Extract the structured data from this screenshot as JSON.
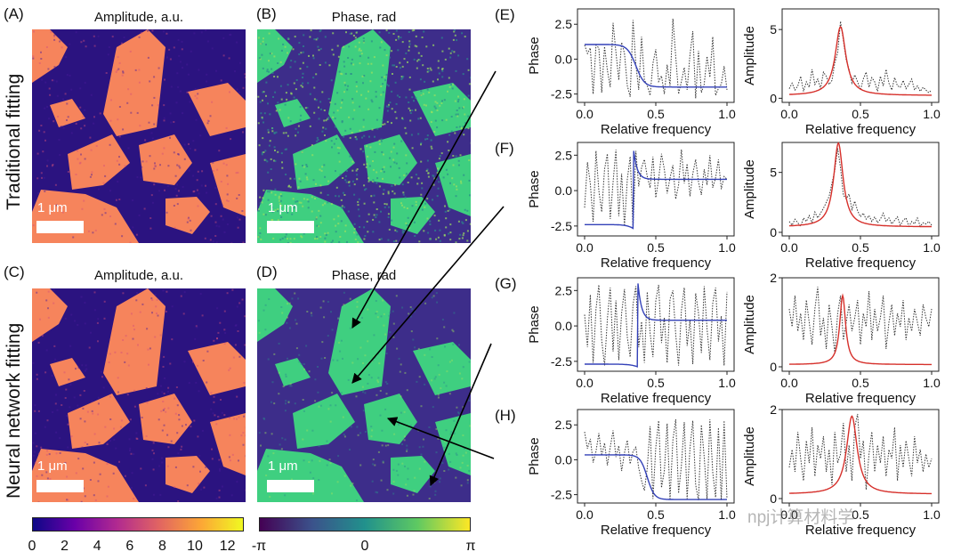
{
  "panels": {
    "A": {
      "letter": "(A)",
      "title": "Amplitude, a.u.",
      "scalebar": "1 μm"
    },
    "B": {
      "letter": "(B)",
      "title": "Phase, rad",
      "scalebar": "1 μm"
    },
    "C": {
      "letter": "(C)",
      "title": "Amplitude, a.u.",
      "scalebar": "1 μm"
    },
    "D": {
      "letter": "(D)",
      "title": "Phase, rad",
      "scalebar": "1 μm"
    }
  },
  "row_labels": {
    "top": "Traditional fitting",
    "bottom": "Neural network fitting"
  },
  "colorbars": {
    "amplitude": {
      "ticks": [
        "0",
        "2",
        "4",
        "6",
        "8",
        "10",
        "12"
      ],
      "colors": [
        "#0d0887",
        "#6a00a8",
        "#b12a90",
        "#e16462",
        "#fca636",
        "#f0f921"
      ]
    },
    "phase": {
      "ticks": [
        "-π",
        "0",
        "π"
      ],
      "colors": [
        "#440154",
        "#3b528b",
        "#21918c",
        "#5ec962",
        "#fde725"
      ]
    }
  },
  "colors": {
    "fit_phase": "#3341b8",
    "fit_amplitude": "#d6302b",
    "data": "#333333",
    "amp_map_low": "#2b1380",
    "amp_map_high": "#f6845c",
    "phase_map_low": "#3d2d8a",
    "phase_map_high": "#3fcf80"
  },
  "watermark": "npj计算材料学",
  "chart_data": [
    {
      "panel": "(E)",
      "type": "line",
      "xlabel": "Relative frequency",
      "ylabel": "Phase",
      "xticks": [
        "0.0",
        "0.5",
        "1.0"
      ],
      "yticks": [
        "-2.5",
        "0.0",
        "2.5"
      ],
      "xlim": [
        -0.05,
        1.05
      ],
      "ylim": [
        -3.1,
        3.6
      ],
      "fit": {
        "kind": "phase",
        "hi": 1.05,
        "lo": -2.0,
        "x0": 0.36,
        "w": 0.03
      },
      "data": [
        1.0,
        0.4,
        0.8,
        -2.5,
        1.0,
        0.8,
        -2.4,
        0.9,
        -0.8,
        -2.0,
        2.6,
        0.5,
        -1.5,
        1.2,
        0.4,
        -1.9,
        -2.7,
        2.8,
        -0.4,
        -2.2,
        1.6,
        -1.5,
        -1.9,
        -2.6,
        -0.3,
        0.7,
        -1.6,
        -1.2,
        -2.5,
        -0.4,
        -1.9,
        2.9,
        0.2,
        -2.5,
        -1.6,
        -0.6,
        -2.2,
        0.3,
        2.0,
        -2.8,
        0.6,
        -2.4,
        -1.8,
        0.2,
        -1.3,
        1.6,
        -2.6,
        -2.1,
        -1.8,
        -0.5,
        -2.2
      ]
    },
    {
      "panel": "(E)",
      "type": "line",
      "xlabel": "Relative frequency",
      "ylabel": "Amplitude",
      "xticks": [
        "0.0",
        "0.5",
        "1.0"
      ],
      "yticks": [
        "0",
        "5"
      ],
      "xlim": [
        -0.05,
        1.05
      ],
      "ylim": [
        -0.3,
        6.5
      ],
      "fit": {
        "kind": "amp",
        "A": 5.0,
        "x0": 0.36,
        "g": 0.045,
        "base": 0.2
      },
      "data": [
        0.7,
        1.1,
        0.6,
        0.9,
        1.6,
        0.5,
        1.2,
        0.8,
        2.1,
        1.0,
        1.4,
        0.7,
        1.9,
        1.6,
        1.0,
        1.3,
        2.6,
        3.3,
        5.6,
        4.2,
        2.8,
        2.1,
        1.1,
        1.7,
        1.2,
        0.6,
        1.4,
        1.9,
        0.8,
        1.5,
        1.2,
        0.5,
        1.6,
        0.9,
        2.1,
        1.1,
        0.6,
        1.5,
        0.9,
        0.8,
        1.3,
        0.7,
        1.0,
        1.4,
        0.6,
        0.9,
        0.5,
        0.8,
        0.6,
        0.4,
        0.6
      ]
    },
    {
      "panel": "(F)",
      "type": "line",
      "xlabel": "Relative frequency",
      "ylabel": "Phase",
      "xticks": [
        "0.0",
        "0.5",
        "1.0"
      ],
      "yticks": [
        "-2.5",
        "0.0",
        "2.5"
      ],
      "xlim": [
        -0.05,
        1.05
      ],
      "ylim": [
        -3.2,
        3.4
      ],
      "fit": {
        "kind": "phase_jump",
        "lo1": -2.4,
        "hi1": -2.7,
        "hi2": 2.8,
        "lo2": 0.8,
        "x0": 0.345
      },
      "data": [
        -1.2,
        2.0,
        0.5,
        -2.2,
        2.8,
        0.0,
        -1.5,
        1.5,
        2.6,
        -2.0,
        0.6,
        2.9,
        -1.8,
        1.2,
        -2.5,
        0.8,
        2.4,
        -2.7,
        2.8,
        0.3,
        1.6,
        2.2,
        1.0,
        0.2,
        2.4,
        -0.5,
        0.8,
        2.6,
        1.5,
        -0.2,
        0.9,
        1.8,
        -0.6,
        0.4,
        2.9,
        0.5,
        1.9,
        -0.4,
        1.2,
        2.2,
        0.6,
        -0.3,
        1.5,
        0.4,
        2.5,
        0.2,
        0.9,
        2.2,
        0.1,
        1.0,
        0.8
      ]
    },
    {
      "panel": "(F)",
      "type": "line",
      "xlabel": "Relative frequency",
      "ylabel": "Amplitude",
      "xticks": [
        "0.0",
        "0.5",
        "1.0"
      ],
      "yticks": [
        "0",
        "5"
      ],
      "xlim": [
        -0.05,
        1.05
      ],
      "ylim": [
        -0.3,
        7.5
      ],
      "fit": {
        "kind": "amp",
        "A": 7.0,
        "x0": 0.345,
        "g": 0.04,
        "base": 0.45
      },
      "data": [
        0.9,
        0.6,
        1.1,
        0.8,
        0.5,
        1.2,
        0.9,
        1.4,
        0.8,
        1.7,
        1.2,
        1.6,
        2.0,
        2.5,
        3.0,
        4.1,
        5.2,
        7.0,
        5.4,
        3.1,
        2.8,
        3.2,
        1.9,
        2.6,
        1.8,
        1.3,
        1.6,
        1.1,
        1.4,
        0.9,
        1.3,
        0.8,
        1.1,
        1.6,
        0.9,
        1.2,
        0.7,
        1.0,
        1.3,
        0.6,
        1.0,
        1.2,
        0.5,
        0.9,
        0.7,
        1.2,
        0.5,
        0.8,
        0.7,
        0.9,
        0.6
      ]
    },
    {
      "panel": "(G)",
      "type": "line",
      "xlabel": "Relative frequency",
      "ylabel": "Phase",
      "xticks": [
        "0.0",
        "0.5",
        "1.0"
      ],
      "yticks": [
        "-2.5",
        "0.0",
        "2.5"
      ],
      "xlim": [
        -0.05,
        1.05
      ],
      "ylim": [
        -3.2,
        3.4
      ],
      "fit": {
        "kind": "phase_jump",
        "lo1": -2.7,
        "hi1": -2.9,
        "hi2": 3.0,
        "lo2": 0.4,
        "x0": 0.375
      },
      "data": [
        0.8,
        -1.5,
        2.2,
        -2.6,
        1.2,
        2.9,
        -1.0,
        -2.8,
        0.5,
        2.7,
        -1.8,
        1.8,
        -2.4,
        0.9,
        2.6,
        -0.8,
        -2.2,
        1.5,
        2.8,
        -1.5,
        0.3,
        -2.6,
        2.4,
        -0.5,
        -2.2,
        1.8,
        2.9,
        -1.2,
        0.6,
        -2.6,
        1.9,
        2.5,
        -0.6,
        -2.8,
        1.1,
        2.7,
        -1.4,
        0.4,
        -2.7,
        2.3,
        0.9,
        -1.9,
        2.8,
        -0.2,
        -2.4,
        1.6,
        2.7,
        -1.1,
        0.7,
        -2.8,
        2.4
      ]
    },
    {
      "panel": "(G)",
      "type": "line",
      "xlabel": "Relative frequency",
      "ylabel": "Amplitude",
      "xticks": [
        "0.0",
        "0.5",
        "1.0"
      ],
      "yticks": [
        "0",
        "2"
      ],
      "xlim": [
        -0.05,
        1.05
      ],
      "ylim": [
        -0.1,
        2.0
      ],
      "fit": {
        "kind": "amp",
        "A": 1.55,
        "x0": 0.375,
        "g": 0.025,
        "base": 0.05
      },
      "data": [
        1.3,
        0.9,
        1.6,
        0.8,
        1.2,
        0.6,
        1.5,
        1.0,
        0.5,
        1.3,
        1.8,
        0.7,
        1.1,
        0.4,
        1.4,
        0.9,
        0.3,
        1.2,
        1.6,
        0.6,
        1.0,
        1.4,
        0.8,
        1.1,
        1.5,
        0.5,
        1.2,
        0.9,
        1.7,
        0.6,
        1.3,
        0.8,
        1.1,
        1.6,
        0.4,
        1.0,
        1.4,
        0.7,
        1.2,
        0.9,
        1.5,
        0.6,
        1.1,
        0.8,
        1.3,
        1.0,
        0.7,
        1.4,
        1.1,
        0.9,
        1.3
      ]
    },
    {
      "panel": "(H)",
      "type": "line",
      "xlabel": "Relative frequency",
      "ylabel": "Phase",
      "xticks": [
        "0.0",
        "0.5",
        "1.0"
      ],
      "yticks": [
        "-2.5",
        "0.0",
        "2.5"
      ],
      "xlim": [
        -0.05,
        1.05
      ],
      "ylim": [
        -3.1,
        3.6
      ],
      "fit": {
        "kind": "phase",
        "hi": 0.35,
        "lo": -2.85,
        "x0": 0.44,
        "w": 0.025
      },
      "data": [
        2.0,
        0.8,
        1.5,
        -0.2,
        0.6,
        1.9,
        0.3,
        1.2,
        -0.4,
        0.9,
        2.1,
        0.2,
        1.0,
        -0.8,
        0.5,
        1.4,
        -0.3,
        0.6,
        0.9,
        -0.6,
        -1.5,
        -2.2,
        -0.6,
        2.4,
        -2.8,
        0.9,
        2.8,
        -2.0,
        -0.8,
        2.6,
        -2.8,
        1.4,
        2.9,
        -2.4,
        -0.4,
        2.7,
        -2.8,
        0.8,
        2.8,
        -1.8,
        -2.9,
        2.5,
        0.2,
        -2.8,
        2.9,
        -0.9,
        -2.7,
        2.3,
        -2.9,
        2.8,
        -2.8
      ]
    },
    {
      "panel": "(H)",
      "type": "line",
      "xlabel": "Relative frequency",
      "ylabel": "Amplitude",
      "xticks": [
        "0.0",
        "0.5",
        "1.0"
      ],
      "yticks": [
        "0",
        "2"
      ],
      "xlim": [
        -0.05,
        1.05
      ],
      "ylim": [
        -0.1,
        2.0
      ],
      "fit": {
        "kind": "amp",
        "A": 1.75,
        "x0": 0.44,
        "g": 0.045,
        "base": 0.1
      },
      "data": [
        0.7,
        1.1,
        0.6,
        1.5,
        0.9,
        0.4,
        1.3,
        0.8,
        1.6,
        0.5,
        1.2,
        0.9,
        1.4,
        0.6,
        1.1,
        0.3,
        1.5,
        0.8,
        1.0,
        1.7,
        0.6,
        1.2,
        0.4,
        1.6,
        1.9,
        0.9,
        1.3,
        0.2,
        1.0,
        1.5,
        0.6,
        1.2,
        0.8,
        1.4,
        0.5,
        1.1,
        0.9,
        1.6,
        0.4,
        1.2,
        0.7,
        1.3,
        0.9,
        0.5,
        1.4,
        0.8,
        1.1,
        0.6,
        1.0,
        0.7,
        0.9
      ]
    }
  ]
}
